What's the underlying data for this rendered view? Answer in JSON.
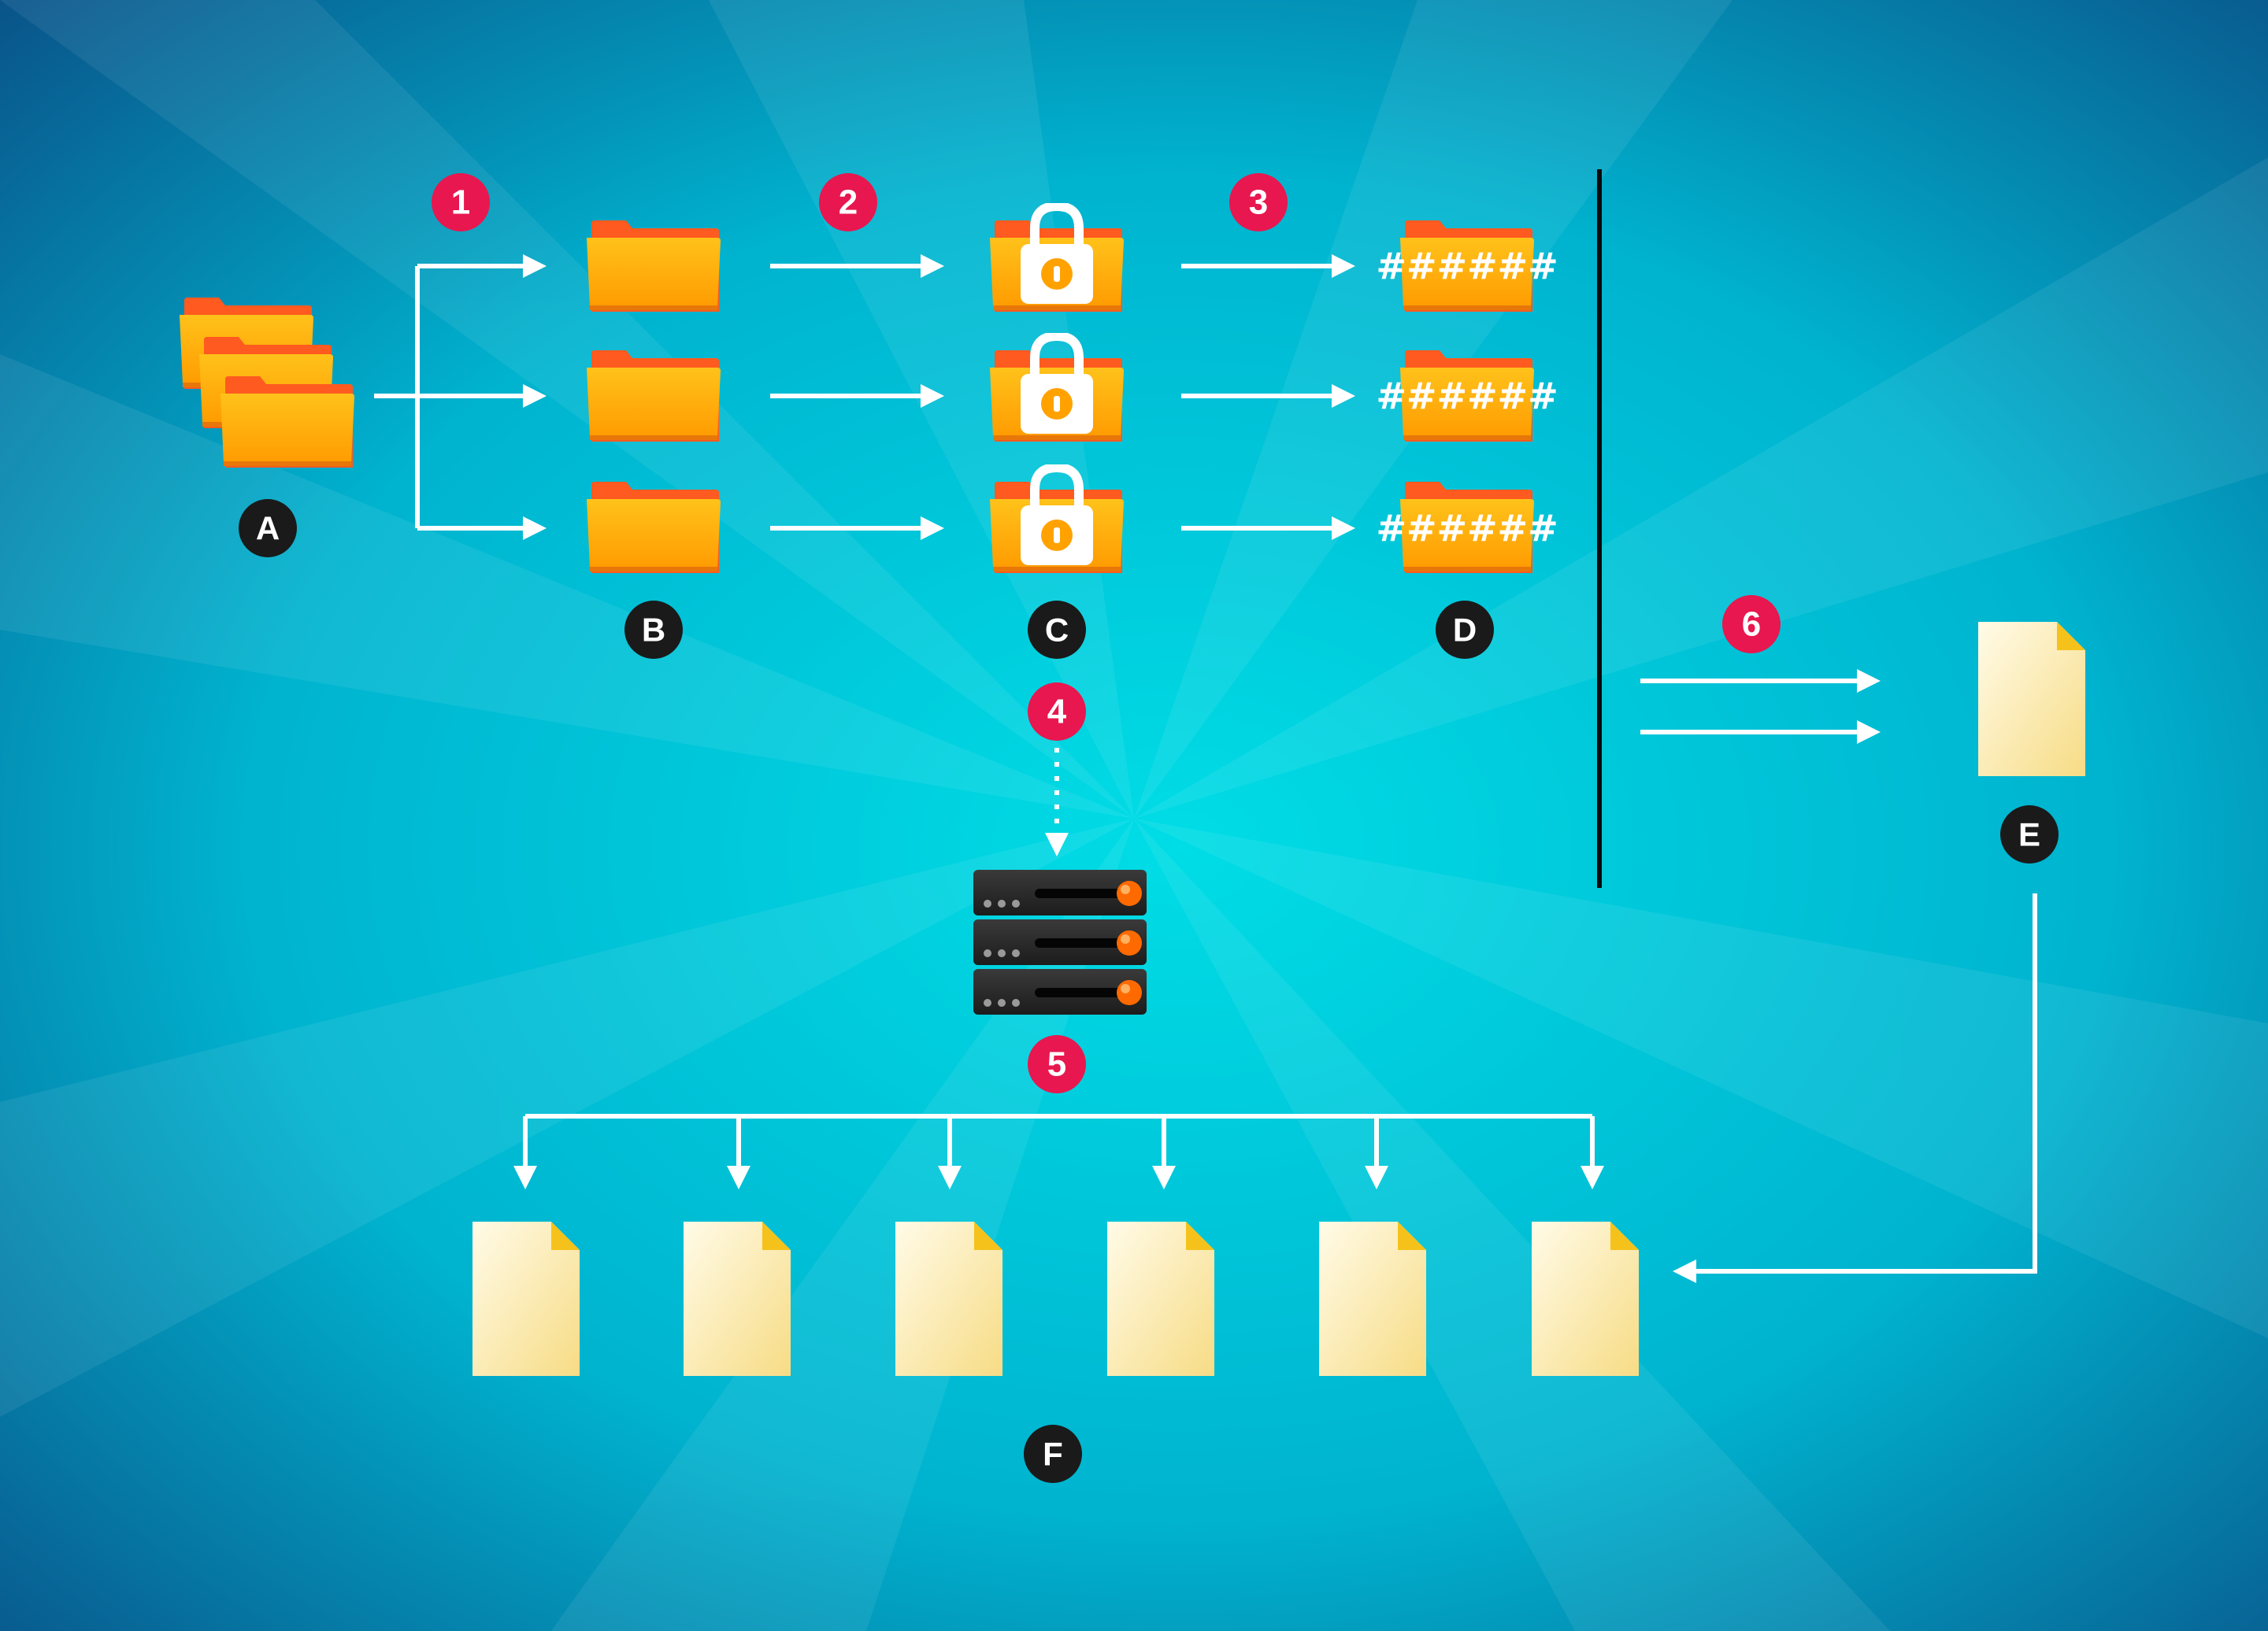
{
  "colors": {
    "background_center": "#00dde6",
    "background_edge": "#0a4f86",
    "arrow": "#ffffff",
    "step_badge": "#e8174f",
    "node_badge": "#1a1a1a",
    "folder_front": "#ffb000",
    "folder_back": "#ff5a1f",
    "document_fill": "#fff4cc",
    "document_fold": "#f5c21b",
    "divider": "#0a0a0a",
    "server_body": "#2a2a2a",
    "server_led": "#ff6a00"
  },
  "steps": [
    {
      "id": "step-1",
      "label": "1"
    },
    {
      "id": "step-2",
      "label": "2"
    },
    {
      "id": "step-3",
      "label": "3"
    },
    {
      "id": "step-4",
      "label": "4"
    },
    {
      "id": "step-5",
      "label": "5"
    },
    {
      "id": "step-6",
      "label": "6"
    }
  ],
  "nodes": [
    {
      "id": "node-a",
      "label": "A",
      "icon": "folder-stack-icon"
    },
    {
      "id": "node-b",
      "label": "B",
      "icon": "folder-icon"
    },
    {
      "id": "node-c",
      "label": "C",
      "icon": "locked-folder-icon"
    },
    {
      "id": "node-d",
      "label": "D",
      "icon": "encrypted-folder-icon"
    },
    {
      "id": "node-e",
      "label": "E",
      "icon": "document-icon"
    },
    {
      "id": "node-f",
      "label": "F",
      "icon": "document-icon"
    }
  ],
  "encrypted_text": "######",
  "server_icon": "server-rack-icon"
}
